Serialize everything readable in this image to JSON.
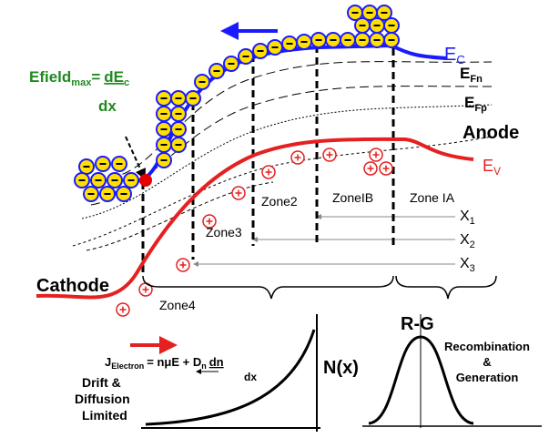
{
  "band_labels": {
    "ec": {
      "base": "E",
      "sub": "C"
    },
    "efn": {
      "base": "E",
      "sub": "Fn"
    },
    "efp": {
      "base": "E",
      "sub": "Fp"
    },
    "ev": {
      "base": "E",
      "sub": "V"
    }
  },
  "regions": {
    "anode": "Anode",
    "cathode": "Cathode"
  },
  "efield": {
    "base": "Efield",
    "sub": "max",
    "eq": "=",
    "num_base": "dE",
    "num_sub": "c",
    "den": "dx"
  },
  "zones": [
    "Zone2",
    "ZoneIB",
    "Zone IA",
    "Zone3",
    "Zone4"
  ],
  "positions": [
    {
      "base": "X",
      "sub": "1"
    },
    {
      "base": "X",
      "sub": "2"
    },
    {
      "base": "X",
      "sub": "3"
    }
  ],
  "current": {
    "j": "J",
    "j_sub": "Electron",
    "rhs": "= nμE + D",
    "d_sub": "n",
    "num": "dn",
    "den": "dx"
  },
  "drift_label": [
    "Drift &",
    "Diffusion",
    "Limited"
  ],
  "nx_label": "N(x)",
  "rg": {
    "title": "R-G",
    "lines": [
      "Recombination",
      "&",
      "Generation"
    ]
  }
}
